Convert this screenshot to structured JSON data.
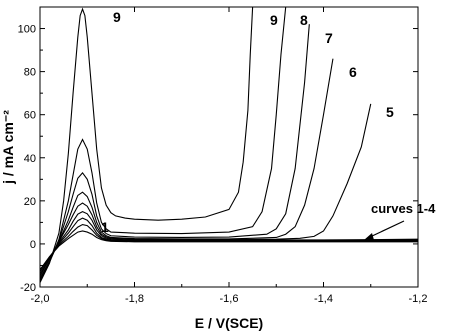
{
  "chart_data": {
    "type": "line",
    "title": "",
    "xlabel": "E / V(SCE)",
    "ylabel": "j / mA cm⁻²",
    "xlim": [
      -2.0,
      -1.2
    ],
    "ylim": [
      -20,
      110
    ],
    "xticks": [
      -2.0,
      -1.8,
      -1.6,
      -1.4,
      -1.2
    ],
    "xtick_labels": [
      "-2,0",
      "-1,8",
      "-1,6",
      "-1,4",
      "-1,2"
    ],
    "yticks": [
      -20,
      0,
      20,
      40,
      60,
      80,
      100
    ],
    "ytick_labels": [
      "-20",
      "0",
      "20",
      "40",
      "60",
      "80",
      "100"
    ],
    "grid": false,
    "series": [
      {
        "name": "1",
        "x": [
          -2.0,
          -1.98,
          -1.96,
          -1.94,
          -1.93,
          -1.92,
          -1.91,
          -1.9,
          -1.89,
          -1.88,
          -1.87,
          -1.86,
          -1.85,
          -1.8,
          -1.7,
          -1.6,
          -1.5,
          -1.4,
          -1.3,
          -1.2
        ],
        "y": [
          -12.0,
          -6.0,
          -1.0,
          2.5,
          4.0,
          5.5,
          6.0,
          5.5,
          4.5,
          3.0,
          2.0,
          1.5,
          1.2,
          1.0,
          1.0,
          1.0,
          1.0,
          1.0,
          1.0,
          1.0
        ]
      },
      {
        "name": "2",
        "x": [
          -2.0,
          -1.98,
          -1.96,
          -1.94,
          -1.93,
          -1.92,
          -1.91,
          -1.9,
          -1.89,
          -1.88,
          -1.87,
          -1.86,
          -1.85,
          -1.8,
          -1.7,
          -1.6,
          -1.5,
          -1.4,
          -1.3,
          -1.2
        ],
        "y": [
          -12.0,
          -6.0,
          -0.5,
          3.5,
          5.8,
          7.8,
          9.0,
          8.5,
          6.5,
          4.0,
          2.5,
          1.8,
          1.5,
          1.2,
          1.2,
          1.2,
          1.2,
          1.2,
          1.3,
          1.4
        ]
      },
      {
        "name": "3",
        "x": [
          -2.0,
          -1.98,
          -1.96,
          -1.94,
          -1.93,
          -1.92,
          -1.91,
          -1.9,
          -1.89,
          -1.88,
          -1.87,
          -1.86,
          -1.85,
          -1.8,
          -1.7,
          -1.6,
          -1.5,
          -1.4,
          -1.3,
          -1.2
        ],
        "y": [
          -13.0,
          -6.5,
          0.0,
          5.0,
          8.0,
          10.8,
          12.0,
          11.0,
          8.5,
          5.0,
          3.0,
          2.2,
          1.8,
          1.5,
          1.5,
          1.5,
          1.5,
          1.5,
          1.6,
          1.7
        ]
      },
      {
        "name": "4",
        "x": [
          -2.0,
          -1.98,
          -1.96,
          -1.94,
          -1.93,
          -1.92,
          -1.91,
          -1.9,
          -1.89,
          -1.88,
          -1.87,
          -1.86,
          -1.85,
          -1.8,
          -1.7,
          -1.6,
          -1.5,
          -1.4,
          -1.3,
          -1.2
        ],
        "y": [
          -14.0,
          -7.0,
          0.5,
          6.5,
          10.5,
          13.8,
          15.0,
          14.0,
          11.0,
          6.5,
          3.8,
          2.7,
          2.2,
          1.8,
          1.8,
          1.8,
          1.8,
          1.8,
          2.0,
          2.2
        ]
      },
      {
        "name": "5",
        "x": [
          -2.0,
          -1.98,
          -1.96,
          -1.94,
          -1.93,
          -1.92,
          -1.91,
          -1.9,
          -1.89,
          -1.88,
          -1.87,
          -1.86,
          -1.85,
          -1.8,
          -1.7,
          -1.6,
          -1.5,
          -1.45,
          -1.42,
          -1.4,
          -1.38,
          -1.35,
          -1.32,
          -1.3
        ],
        "y": [
          -15.0,
          -7.0,
          1.0,
          9.0,
          13.5,
          17.5,
          19.0,
          17.5,
          13.5,
          8.0,
          4.5,
          3.2,
          2.6,
          2.2,
          2.0,
          2.0,
          2.2,
          2.6,
          3.5,
          6.0,
          13.0,
          28.0,
          45.0,
          65.0
        ]
      },
      {
        "name": "6",
        "x": [
          -2.0,
          -1.98,
          -1.96,
          -1.94,
          -1.93,
          -1.92,
          -1.91,
          -1.9,
          -1.89,
          -1.88,
          -1.87,
          -1.86,
          -1.85,
          -1.8,
          -1.7,
          -1.6,
          -1.5,
          -1.48,
          -1.46,
          -1.44,
          -1.42,
          -1.4,
          -1.38
        ],
        "y": [
          -16.0,
          -8.0,
          1.0,
          11.0,
          17.0,
          22.5,
          24.0,
          22.0,
          17.0,
          10.0,
          5.5,
          3.8,
          3.0,
          2.5,
          2.3,
          2.3,
          3.0,
          4.5,
          8.0,
          18.0,
          35.0,
          60.0,
          86.0
        ]
      },
      {
        "name": "7",
        "x": [
          -2.0,
          -1.98,
          -1.96,
          -1.94,
          -1.93,
          -1.92,
          -1.91,
          -1.9,
          -1.89,
          -1.88,
          -1.87,
          -1.86,
          -1.85,
          -1.8,
          -1.7,
          -1.6,
          -1.52,
          -1.5,
          -1.48,
          -1.46,
          -1.44,
          -1.43
        ],
        "y": [
          -17.0,
          -8.5,
          1.5,
          15.0,
          23.0,
          30.5,
          33.0,
          30.0,
          23.0,
          13.0,
          7.0,
          4.8,
          3.8,
          3.2,
          3.0,
          3.2,
          4.5,
          7.0,
          14.0,
          35.0,
          75.0,
          102.0
        ]
      },
      {
        "name": "8",
        "x": [
          -2.0,
          -1.98,
          -1.96,
          -1.94,
          -1.93,
          -1.92,
          -1.91,
          -1.9,
          -1.89,
          -1.88,
          -1.87,
          -1.86,
          -1.85,
          -1.8,
          -1.7,
          -1.6,
          -1.55,
          -1.53,
          -1.51,
          -1.5,
          -1.49,
          -1.48
        ],
        "y": [
          -17.0,
          -8.5,
          2.0,
          20.0,
          32.0,
          44.0,
          48.5,
          44.0,
          33.0,
          19.0,
          10.0,
          7.0,
          5.5,
          5.0,
          4.8,
          5.5,
          8.0,
          15.0,
          35.0,
          60.0,
          88.0,
          110.0
        ]
      },
      {
        "name": "9",
        "x": [
          -2.0,
          -1.98,
          -1.96,
          -1.95,
          -1.94,
          -1.93,
          -1.92,
          -1.915,
          -1.91,
          -1.905,
          -1.9,
          -1.89,
          -1.88,
          -1.87,
          -1.86,
          -1.85,
          -1.84,
          -1.82,
          -1.8,
          -1.75,
          -1.7,
          -1.65,
          -1.6,
          -1.58,
          -1.57,
          -1.56,
          -1.555,
          -1.55
        ],
        "y": [
          -18.0,
          -9.0,
          5.0,
          20.0,
          42.0,
          70.0,
          96.0,
          106.0,
          109.0,
          106.0,
          96.0,
          70.0,
          44.0,
          26.0,
          18.0,
          14.5,
          13.0,
          12.0,
          11.5,
          11.0,
          11.5,
          12.5,
          16.0,
          24.0,
          38.0,
          62.0,
          88.0,
          110.0
        ]
      }
    ],
    "labels": {
      "curve_5": "5",
      "curve_6": "6",
      "curve_7": "7",
      "curve_8": "8",
      "curve_9_peak": "9",
      "curve_9_rise": "9",
      "curve_1": "1",
      "curves_1_4": "curves 1-4"
    }
  }
}
